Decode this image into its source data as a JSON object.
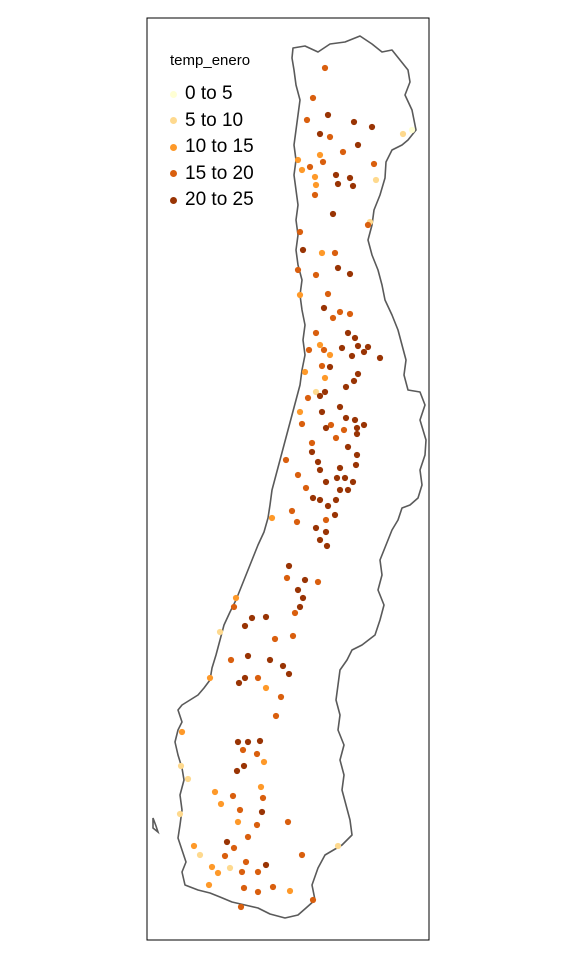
{
  "legend": {
    "title": "temp_enero",
    "classes": [
      {
        "label": "0 to 5",
        "color": "#ffffd4"
      },
      {
        "label": "5 to 10",
        "color": "#fed98e"
      },
      {
        "label": "10 to 15",
        "color": "#fe9929"
      },
      {
        "label": "15 to 20",
        "color": "#d95f0e"
      },
      {
        "label": "20 to 25",
        "color": "#993404"
      }
    ]
  },
  "colors": {
    "boundary": "#5a5a5a",
    "frame": "#000000",
    "background": "#ffffff"
  }
}
